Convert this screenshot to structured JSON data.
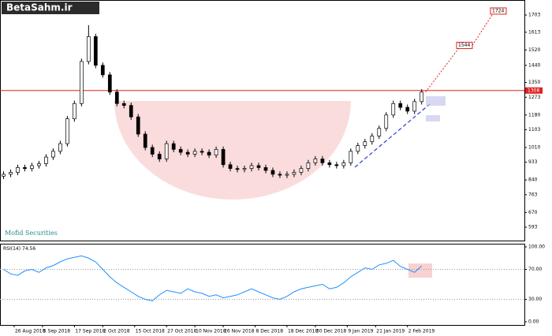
{
  "chart_data": {
    "type": "candlestick",
    "watermark": "BetaSahm.ir",
    "broker": "Mofid Securities",
    "x": [
      0,
      2,
      4,
      6,
      8,
      10,
      12,
      14,
      16,
      18,
      20,
      22,
      24,
      26,
      28,
      30,
      32,
      34,
      36,
      38,
      40,
      42,
      44,
      46,
      48,
      50,
      52,
      54,
      56,
      58,
      60,
      62,
      64,
      66,
      68,
      70,
      72,
      74,
      76,
      78,
      80,
      82,
      84,
      86,
      88,
      90,
      92,
      94,
      96,
      98,
      100,
      102,
      104,
      106,
      108,
      110,
      112,
      114,
      116,
      118
    ],
    "open": [
      860,
      870,
      880,
      905,
      900,
      915,
      925,
      960,
      990,
      1030,
      1160,
      1240,
      1460,
      1590,
      1440,
      1390,
      1300,
      1240,
      1230,
      1170,
      1080,
      1010,
      975,
      950,
      1030,
      1000,
      985,
      975,
      990,
      985,
      970,
      1000,
      920,
      900,
      895,
      900,
      915,
      905,
      890,
      870,
      865,
      870,
      880,
      900,
      930,
      950,
      930,
      920,
      915,
      930,
      990,
      1020,
      1040,
      1070,
      1110,
      1180,
      1240,
      1220,
      1200,
      1250
    ],
    "high": [
      885,
      895,
      920,
      920,
      930,
      940,
      975,
      1005,
      1045,
      1175,
      1255,
      1475,
      1650,
      1605,
      1455,
      1405,
      1315,
      1255,
      1245,
      1185,
      1095,
      1025,
      990,
      1045,
      1045,
      1015,
      1000,
      1005,
      1005,
      1000,
      1015,
      1015,
      935,
      915,
      915,
      930,
      930,
      920,
      905,
      885,
      885,
      895,
      915,
      945,
      965,
      965,
      945,
      935,
      945,
      1005,
      1035,
      1055,
      1085,
      1125,
      1195,
      1255,
      1255,
      1235,
      1265,
      1315
    ],
    "low": [
      845,
      855,
      865,
      885,
      885,
      900,
      910,
      945,
      975,
      1015,
      1145,
      1225,
      1445,
      1425,
      1375,
      1285,
      1225,
      1215,
      1155,
      1065,
      995,
      960,
      935,
      935,
      985,
      970,
      960,
      960,
      970,
      955,
      955,
      905,
      885,
      880,
      880,
      885,
      890,
      875,
      855,
      850,
      850,
      855,
      865,
      885,
      915,
      915,
      905,
      900,
      900,
      915,
      975,
      1005,
      1025,
      1055,
      1095,
      1165,
      1205,
      1185,
      1185,
      1235
    ],
    "close": [
      870,
      880,
      905,
      900,
      915,
      925,
      960,
      990,
      1030,
      1160,
      1240,
      1460,
      1590,
      1440,
      1390,
      1300,
      1240,
      1230,
      1170,
      1080,
      1010,
      975,
      950,
      1030,
      1000,
      985,
      975,
      990,
      985,
      970,
      1000,
      920,
      900,
      895,
      900,
      915,
      905,
      890,
      870,
      865,
      870,
      880,
      900,
      930,
      950,
      930,
      920,
      915,
      930,
      990,
      1020,
      1040,
      1070,
      1110,
      1180,
      1240,
      1220,
      1200,
      1250,
      1300
    ],
    "xlim": [
      -1,
      147
    ],
    "xticks": [
      {
        "value": 3,
        "label": "26 Aug 2018"
      },
      {
        "value": 11,
        "label": "5 Sep 2018"
      },
      {
        "value": 20,
        "label": "17 Sep 2018"
      },
      {
        "value": 28,
        "label": "2 Oct 2018"
      },
      {
        "value": 37,
        "label": "15 Oct 2018"
      },
      {
        "value": 46,
        "label": "27 Oct 2018"
      },
      {
        "value": 54,
        "label": "10 Nov 2018"
      },
      {
        "value": 62,
        "label": "26 Nov 2018"
      },
      {
        "value": 71,
        "label": "8 Dec 2018"
      },
      {
        "value": 80,
        "label": "18 Dec 2018"
      },
      {
        "value": 88,
        "label": "30 Dec 2018"
      },
      {
        "value": 97,
        "label": "9 Jan 2019"
      },
      {
        "value": 105,
        "label": "21 Jan 2019"
      },
      {
        "value": 114,
        "label": "2 Feb 2019"
      }
    ],
    "ylim": [
      523,
      1761
    ],
    "yticks": [
      1703,
      1613,
      1520,
      1440,
      1350,
      1273,
      1180,
      1103,
      1010,
      933,
      840,
      763,
      670,
      593
    ],
    "resistance": 1308,
    "targets": [
      1544,
      1724
    ],
    "rsi_title": "RSI(14)",
    "rsi_current": 74.56,
    "rsi": [
      70,
      64,
      62,
      68,
      70,
      66,
      72,
      75,
      80,
      84,
      86,
      88,
      85,
      80,
      70,
      60,
      52,
      46,
      40,
      34,
      30,
      28,
      36,
      42,
      40,
      38,
      44,
      40,
      38,
      34,
      36,
      32,
      34,
      36,
      40,
      44,
      40,
      36,
      32,
      30,
      34,
      40,
      44,
      46,
      48,
      50,
      44,
      46,
      52,
      60,
      66,
      72,
      70,
      76,
      78,
      82,
      74,
      70,
      66,
      74.56
    ],
    "rsi_lim": [
      0,
      100
    ],
    "rsi_ticks": [
      {
        "value": 100,
        "label": "100.00"
      },
      {
        "value": 70,
        "label": "70.00"
      },
      {
        "value": 30,
        "label": "30.00"
      },
      {
        "value": 0,
        "label": "0.00"
      }
    ],
    "candle_up_color": "#ffffff",
    "candle_down_color": "#000000",
    "rsi_color": "#1e90ff",
    "resistance_color": "#e0201e"
  }
}
